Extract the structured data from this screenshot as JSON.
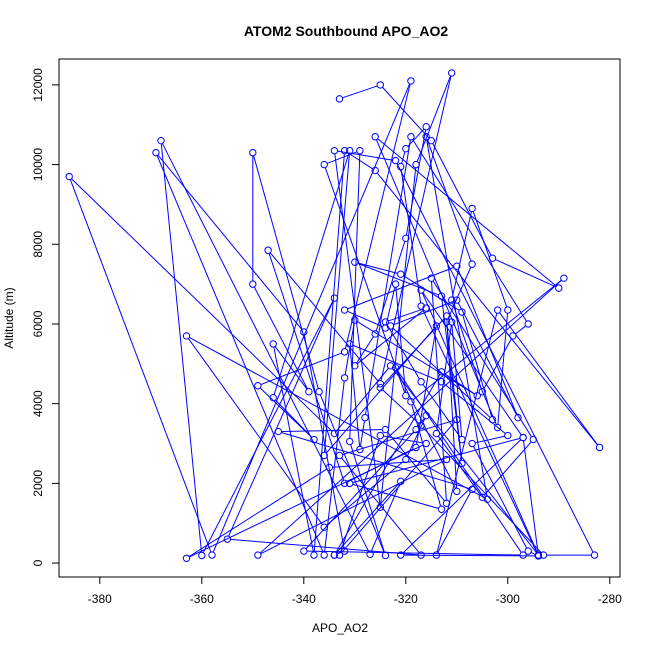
{
  "chart_data": {
    "type": "line",
    "title": "ATOM2 Southbound APO_AO2",
    "xlabel": "APO_AO2",
    "ylabel": "Altitude (m)",
    "xlim": [
      -388,
      -278
    ],
    "ylim": [
      -350,
      12650
    ],
    "xticks": [
      -380,
      -360,
      -340,
      -320,
      -300,
      -280
    ],
    "yticks": [
      0,
      2000,
      4000,
      6000,
      8000,
      10000,
      12000
    ],
    "grid": false,
    "legend": "none",
    "series_color": "#0000ff",
    "marker": "open-circle",
    "series": [
      {
        "x": [
          -333,
          -325,
          -315,
          -303,
          -290,
          -326,
          -302,
          -300,
          -307,
          -311,
          -305,
          -299,
          -296,
          -319,
          -328,
          -329,
          -331,
          -313,
          -300,
          -307,
          -296,
          -294,
          -317,
          -321,
          -320,
          -316,
          -320,
          -326,
          -330,
          -316,
          -324,
          -317,
          -309,
          -311,
          -314,
          -305,
          -295,
          -315,
          -312,
          -324,
          -345,
          -307,
          -314,
          -302,
          -282,
          -326,
          -332,
          -338,
          -346,
          -339,
          -350,
          -350,
          -337,
          -324,
          -331,
          -329,
          -336,
          -320,
          -322,
          -324,
          -332,
          -310,
          -298,
          -310,
          -323,
          -303,
          -309,
          -321,
          -330,
          -313,
          -309,
          -312,
          -307,
          -316,
          -304,
          -363,
          -336,
          -320,
          -316,
          -318,
          -340,
          -297,
          -322,
          -310,
          -312,
          -325,
          -317,
          -293,
          -283,
          -322,
          -334,
          -325,
          -318,
          -311,
          -325,
          -347,
          -332,
          -318,
          -314,
          -336,
          -331,
          -346,
          -338,
          -349,
          -332,
          -319,
          -358,
          -386,
          -334,
          -323,
          -294,
          -317,
          -297,
          -294,
          -321,
          -297,
          -331,
          -313,
          -319,
          -289,
          -349,
          -312,
          -335,
          -363,
          -316,
          -325,
          -333,
          -310,
          -333,
          -317,
          -355,
          -334,
          -360,
          -368,
          -327,
          -321,
          -334,
          -313,
          -306,
          -330,
          -332,
          -336,
          -369,
          -340,
          -332,
          -334
        ],
        "y": [
          11650,
          12000,
          10600,
          7650,
          6900,
          10700,
          3400,
          6350,
          8900,
          6600,
          4300,
          5700,
          6000,
          10700,
          3650,
          2850,
          5500,
          4550,
          3200,
          3000,
          300,
          180,
          6450,
          9950,
          10400,
          10950,
          8150,
          5750,
          4950,
          6400,
          6050,
          4550,
          3100,
          6050,
          3250,
          1650,
          3100,
          7150,
          1500,
          3350,
          3300,
          1850,
          200,
          6350,
          2900,
          9850,
          10350,
          200,
          5500,
          4300,
          7000,
          10300,
          4300,
          190,
          3050,
          10350,
          10000,
          4200,
          7000,
          5900,
          6350,
          7450,
          3650,
          6600,
          5950,
          3600,
          6300,
          7250,
          7550,
          6700,
          2500,
          6050,
          7500,
          10700,
          1600,
          5700,
          900,
          2600,
          3700,
          3350,
          300,
          200,
          4900,
          1800,
          6200,
          4400,
          3450,
          200,
          200,
          10100,
          10350,
          1400,
          10000,
          12300,
          4500,
          7850,
          2000,
          2900,
          5950,
          2700,
          10350,
          4150,
          3100,
          4450,
          5300,
          12100,
          200,
          9700,
          3250,
          4950,
          200,
          6850,
          3150,
          180,
          200,
          3150,
          2000,
          1350,
          4050,
          7150,
          200,
          2600,
          2400,
          120,
          3000,
          3200,
          200,
          3600,
          2700,
          200,
          600,
          6650,
          190,
          10600,
          220,
          2050,
          200,
          4800,
          4200,
          6100,
          4650,
          200,
          10300,
          5800,
          300,
          200
        ]
      }
    ]
  }
}
